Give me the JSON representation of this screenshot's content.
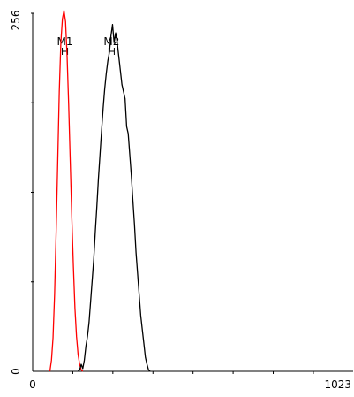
{
  "chart_data": {
    "type": "line",
    "title": "",
    "xlabel": "",
    "ylabel": "",
    "xlim": [
      0,
      1023
    ],
    "ylim": [
      0,
      256
    ],
    "x_tick_labels": [
      {
        "value": 0,
        "label": "0"
      },
      {
        "value": 1023,
        "label": "1023"
      }
    ],
    "y_tick_labels": [
      {
        "value": 0,
        "label": "0"
      },
      {
        "value": 256,
        "label": "256"
      }
    ],
    "markers": [
      {
        "label": "M1",
        "x": 103
      },
      {
        "label": "M2",
        "x": 252
      }
    ],
    "series": [
      {
        "color": "#ff0000",
        "points": [
          [
            55,
            0
          ],
          [
            60,
            8
          ],
          [
            65,
            24
          ],
          [
            70,
            55
          ],
          [
            75,
            100
          ],
          [
            80,
            150
          ],
          [
            85,
            200
          ],
          [
            90,
            235
          ],
          [
            95,
            252
          ],
          [
            100,
            258
          ],
          [
            105,
            250
          ],
          [
            110,
            225
          ],
          [
            115,
            190
          ],
          [
            120,
            150
          ],
          [
            125,
            110
          ],
          [
            130,
            75
          ],
          [
            135,
            45
          ],
          [
            140,
            25
          ],
          [
            145,
            12
          ],
          [
            150,
            5
          ],
          [
            155,
            1
          ],
          [
            160,
            0
          ]
        ]
      },
      {
        "color": "#000000",
        "points": [
          [
            145,
            0
          ],
          [
            150,
            1
          ],
          [
            155,
            5
          ],
          [
            160,
            2
          ],
          [
            165,
            8
          ],
          [
            170,
            18
          ],
          [
            175,
            25
          ],
          [
            180,
            35
          ],
          [
            185,
            50
          ],
          [
            190,
            65
          ],
          [
            195,
            80
          ],
          [
            200,
            100
          ],
          [
            205,
            118
          ],
          [
            210,
            138
          ],
          [
            215,
            155
          ],
          [
            220,
            172
          ],
          [
            225,
            188
          ],
          [
            230,
            202
          ],
          [
            235,
            213
          ],
          [
            240,
            222
          ],
          [
            245,
            228
          ],
          [
            250,
            240
          ],
          [
            255,
            248
          ],
          [
            260,
            235
          ],
          [
            265,
            242
          ],
          [
            270,
            235
          ],
          [
            275,
            225
          ],
          [
            280,
            215
          ],
          [
            285,
            205
          ],
          [
            290,
            200
          ],
          [
            295,
            195
          ],
          [
            300,
            175
          ],
          [
            305,
            170
          ],
          [
            310,
            155
          ],
          [
            315,
            140
          ],
          [
            320,
            122
          ],
          [
            325,
            105
          ],
          [
            330,
            85
          ],
          [
            335,
            70
          ],
          [
            340,
            55
          ],
          [
            345,
            40
          ],
          [
            350,
            30
          ],
          [
            355,
            20
          ],
          [
            360,
            10
          ],
          [
            365,
            5
          ],
          [
            370,
            1
          ],
          [
            375,
            0
          ]
        ]
      }
    ],
    "axis_color": "#000000",
    "grid": false,
    "legend": "none"
  }
}
